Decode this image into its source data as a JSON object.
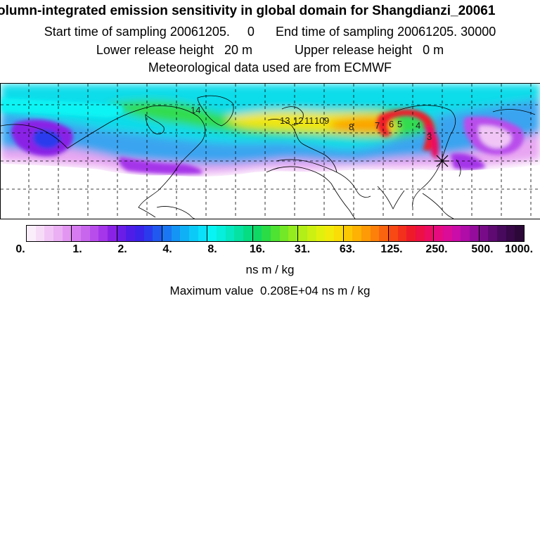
{
  "header": {
    "title": "olumn-integrated emission sensitivity in global domain for Shangdianzi_20061",
    "start_label": "Start time of sampling",
    "start_value": "20061205.     0",
    "end_label": "End time of sampling",
    "end_value": "20061205. 30000",
    "lower_label": "Lower release height",
    "lower_value": "20 m",
    "upper_label": "Upper release height",
    "upper_value": "0 m",
    "met_line": "Meteorological data used are from ECMWF"
  },
  "map": {
    "trajectory_labels": [
      "14",
      "13",
      "12",
      "11",
      "10",
      "9",
      "8",
      "7",
      "6",
      "5",
      "4",
      "3"
    ],
    "grid": "dashed",
    "projection": "global lat-lon, northern hemisphere band"
  },
  "colorbar": {
    "tick_labels": [
      "0.",
      "1.",
      "2.",
      "4.",
      "8.",
      "16.",
      "31.",
      "63.",
      "125.",
      "250.",
      "500.",
      "1000."
    ],
    "colors": [
      "#fbeefb",
      "#f7dcf8",
      "#f1c6f6",
      "#eab0f3",
      "#e296f2",
      "#d67cf0",
      "#c866ee",
      "#b94dec",
      "#a536e9",
      "#8a22e6",
      "#6a1de6",
      "#4f1de8",
      "#3a24ea",
      "#2c3aed",
      "#2158ef",
      "#1a76f2",
      "#1494f4",
      "#10b0f6",
      "#0ccaf8",
      "#0ae0fa",
      "#08f4f4",
      "#06eedc",
      "#05e8c0",
      "#05e2a2",
      "#06dc82",
      "#10d864",
      "#2adc46",
      "#4ee232",
      "#72e826",
      "#94ec1e",
      "#b2ee18",
      "#ccf012",
      "#e2f00e",
      "#f2ea0a",
      "#fadc06",
      "#fcc804",
      "#fdb204",
      "#fd9a06",
      "#fc800a",
      "#fb640e",
      "#f84814",
      "#f2301c",
      "#ee1a2a",
      "#ec1044",
      "#ec0c62",
      "#e60c80",
      "#da0c98",
      "#ca0ca8",
      "#b00ca8",
      "#940c9c",
      "#780c88",
      "#5e0a72",
      "#480a5c",
      "#380848",
      "#2c0838"
    ]
  },
  "units": "ns m / kg",
  "max_label": "Maximum value",
  "max_value": "0.208E+04 ns m / kg"
}
